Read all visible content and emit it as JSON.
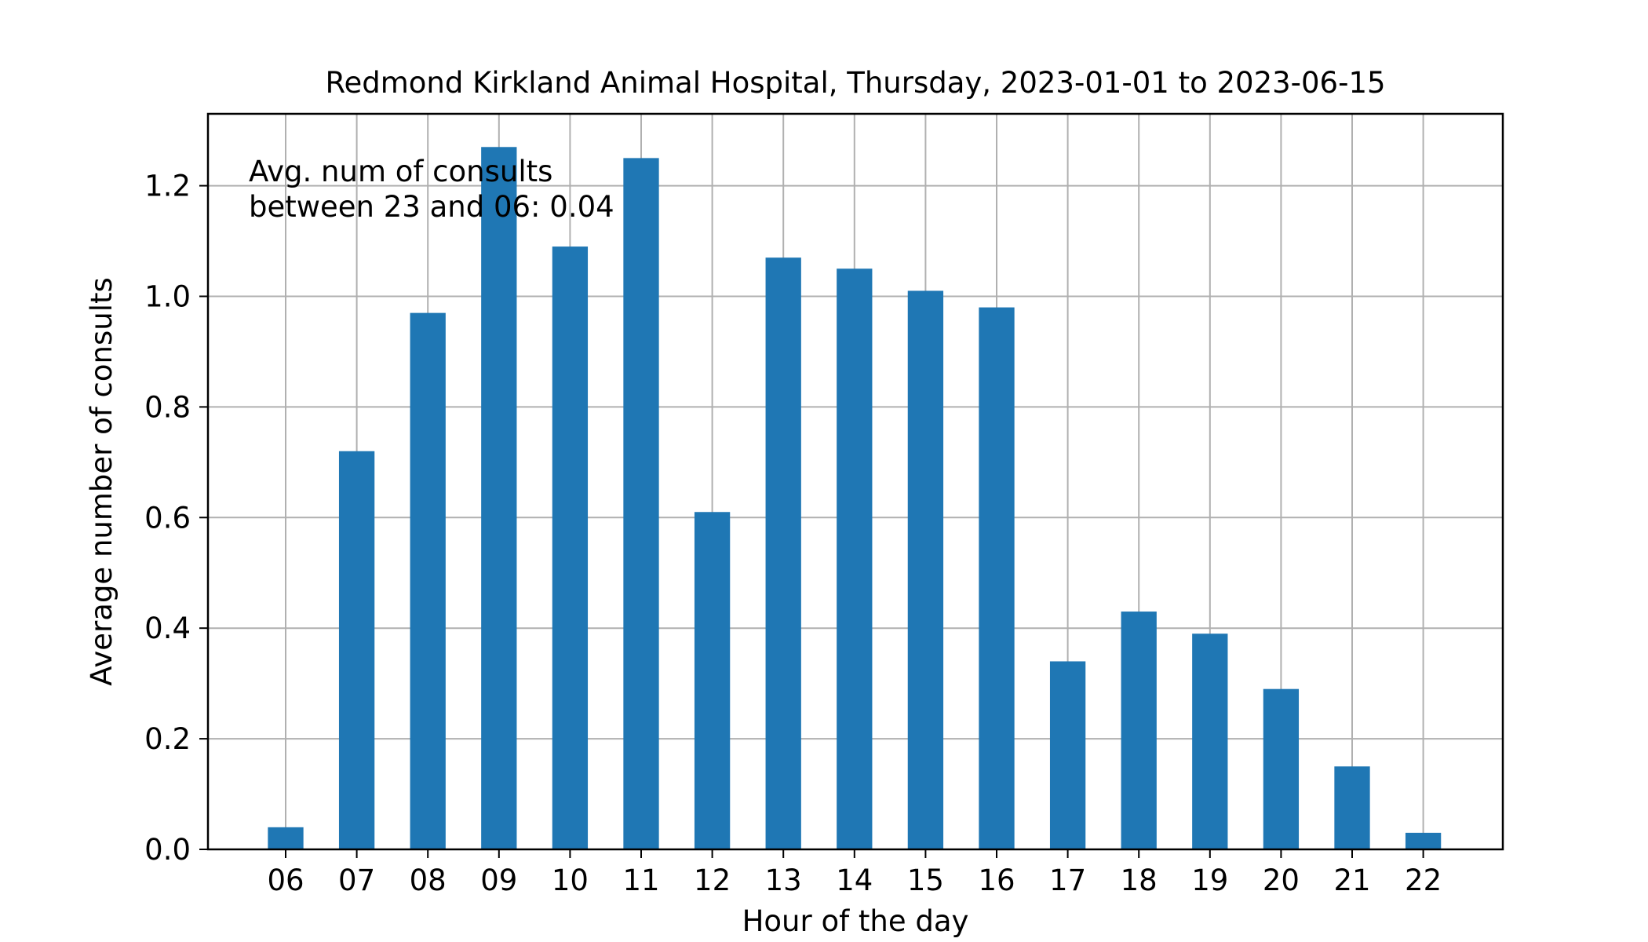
{
  "chart_data": {
    "type": "bar",
    "title": "Redmond Kirkland Animal Hospital, Thursday, 2023-01-01 to 2023-06-15",
    "xlabel": "Hour of the day",
    "ylabel": "Average number of consults",
    "categories": [
      "06",
      "07",
      "08",
      "09",
      "10",
      "11",
      "12",
      "13",
      "14",
      "15",
      "16",
      "17",
      "18",
      "19",
      "20",
      "21",
      "22"
    ],
    "values": [
      0.04,
      0.72,
      0.97,
      1.27,
      1.09,
      1.25,
      0.61,
      1.07,
      1.05,
      1.01,
      0.98,
      0.34,
      0.43,
      0.39,
      0.29,
      0.15,
      0.03
    ],
    "ylim": [
      0,
      1.33
    ],
    "yticks": [
      0.0,
      0.2,
      0.4,
      0.6,
      0.8,
      1.0,
      1.2
    ],
    "ytick_labels": [
      "0.0",
      "0.2",
      "0.4",
      "0.6",
      "0.8",
      "1.0",
      "1.2"
    ],
    "grid": true,
    "bar_color": "#1f77b4",
    "grid_color": "#b0b0b0",
    "annotation": {
      "line1": "Avg. num of consults",
      "line2": "between 23 and 06: 0.04"
    }
  }
}
